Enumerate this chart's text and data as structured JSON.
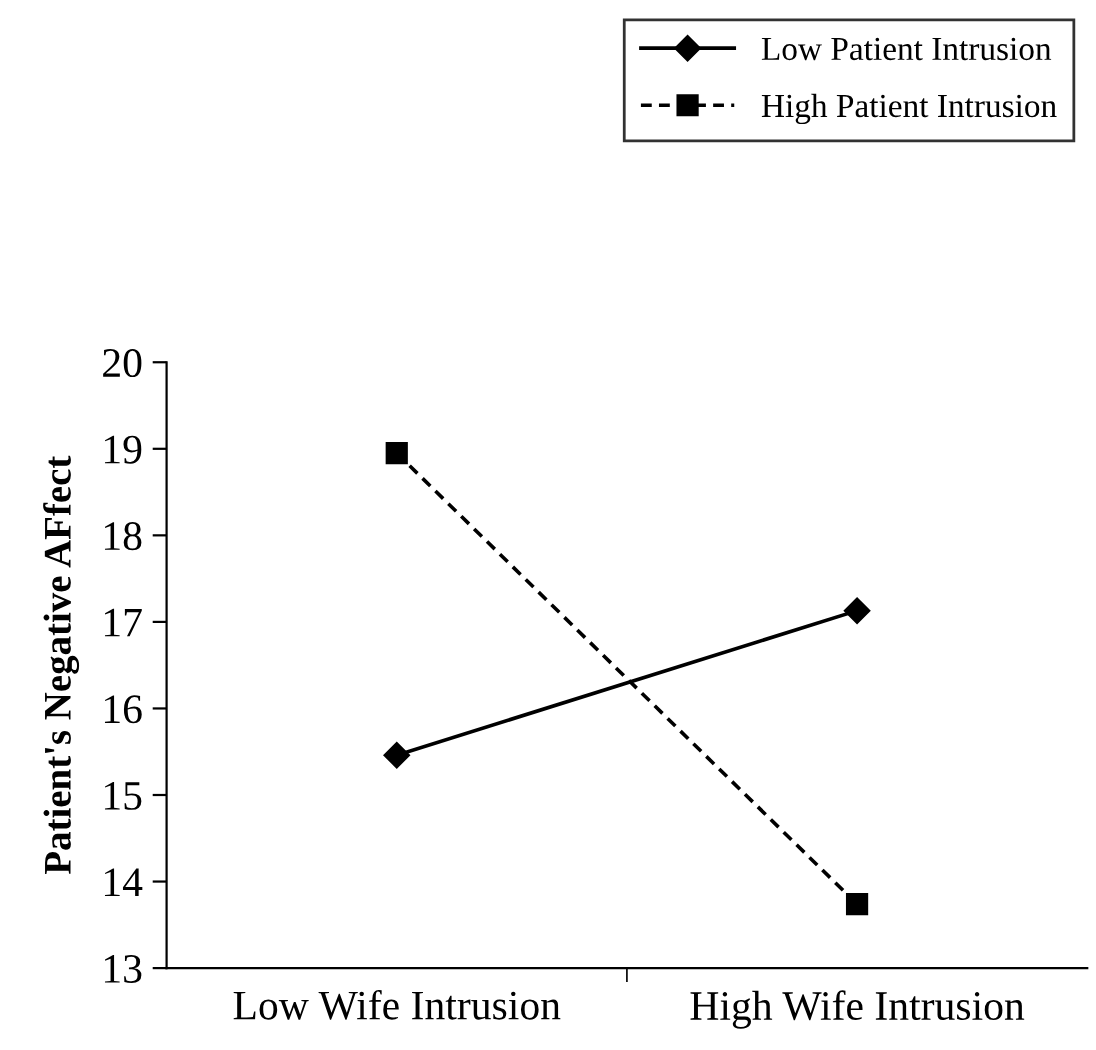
{
  "chart_data": {
    "type": "line",
    "ylabel": "Patient's Negative AFfect",
    "categories": [
      "Low Wife Intrusion",
      "High Wife Intrusion"
    ],
    "series": [
      {
        "name": "Low Patient Intrusion",
        "color": "#000000",
        "values": [
          15.46,
          17.13
        ],
        "marker": "diamond",
        "line_style": "solid"
      },
      {
        "name": "High Patient Intrusion",
        "color": "#000000",
        "values": [
          18.95,
          13.74
        ],
        "marker": "square",
        "line_style": "dashed"
      }
    ],
    "ylim": [
      13,
      20
    ],
    "yticks": [
      13,
      14,
      15,
      16,
      17,
      18,
      19,
      20
    ],
    "grid": false,
    "legend": "top right"
  }
}
